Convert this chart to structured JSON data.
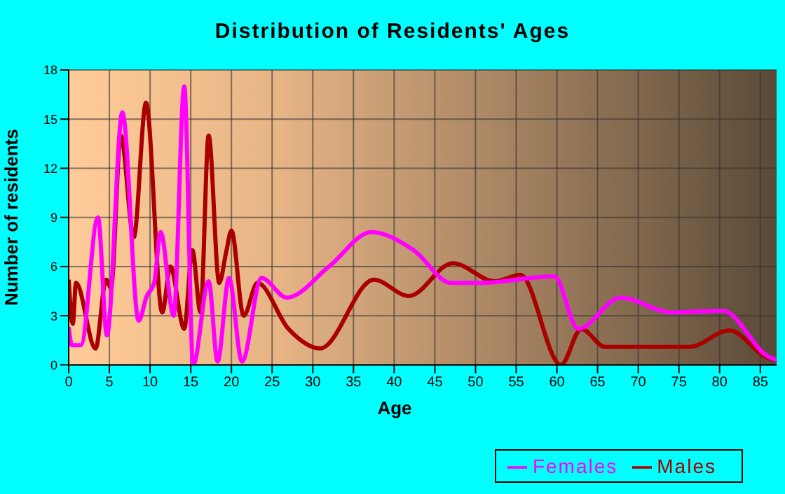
{
  "chart_data": {
    "type": "line",
    "title": "Distribution of Residents' Ages",
    "xlabel": "Age",
    "ylabel": "Number of residents",
    "xlim": [
      0,
      87
    ],
    "xticks": [
      0,
      5,
      10,
      15,
      20,
      25,
      30,
      35,
      40,
      45,
      50,
      55,
      60,
      65,
      70,
      75,
      80,
      85
    ],
    "ylim": [
      0,
      18
    ],
    "yticks": [
      0,
      3,
      6,
      9,
      12,
      15,
      18
    ],
    "grid": true,
    "legend": "bottom right",
    "marker": "none",
    "line_style": "solid",
    "series": [
      {
        "name": "Males",
        "color": "#aa0000",
        "x": [
          0,
          0.5,
          0.9,
          3.3,
          4.6,
          5.2,
          6.4,
          8,
          9.5,
          11.5,
          12.5,
          14.2,
          15.2,
          16.2,
          17.2,
          18.5,
          19.4,
          20,
          21.5,
          23.2,
          27,
          30.9,
          37.5,
          41.8,
          47.2,
          52.4,
          55.5,
          60.5,
          63,
          65.9,
          76.3,
          81.2,
          86,
          87
        ],
        "values": [
          5.2,
          2.5,
          5,
          1,
          5.2,
          4.7,
          14,
          7.8,
          16,
          3.2,
          6,
          2.2,
          7,
          3.2,
          14,
          5,
          7,
          8.2,
          3,
          5,
          2.2,
          1,
          5.2,
          4.2,
          6.2,
          5.1,
          5.5,
          0,
          2.2,
          1.1,
          1.1,
          2.1,
          0.4,
          0.3
        ]
      },
      {
        "name": "Females",
        "color": "#ff00ff",
        "x": [
          0,
          0.4,
          1.5,
          3.6,
          4.7,
          6.6,
          8.6,
          9.6,
          10.5,
          11.3,
          12.9,
          14.2,
          15.3,
          17.2,
          18.3,
          19.7,
          21.3,
          23.7,
          26.8,
          32,
          37.2,
          42.4,
          47,
          50.5,
          59.7,
          62.6,
          67.8,
          74.1,
          80.4,
          86,
          87
        ],
        "values": [
          2.3,
          1.2,
          1.2,
          9,
          1.8,
          15.4,
          2.7,
          4.2,
          5,
          8.1,
          3,
          17,
          0,
          5.1,
          0.2,
          5.3,
          0.2,
          5.3,
          4.1,
          6,
          8.1,
          7,
          5,
          5,
          5.4,
          2.2,
          4.1,
          3.2,
          3.3,
          0.5,
          0.3
        ]
      }
    ]
  }
}
